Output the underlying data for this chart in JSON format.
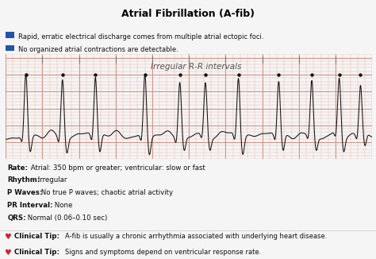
{
  "title": "Atrial Fibrillation (A-fib)",
  "title_bg": "#c8845a",
  "title_color": "black",
  "bullet_color": "#2255aa",
  "bullet1_clean": "Rapid, erratic electrical discharge comes from multiple atrial ectopic foci.",
  "bullet2": "No organized atrial contractions are detectable.",
  "ecg_bg": "#f5c8b8",
  "ecg_grid_minor": "#e8a898",
  "ecg_grid_major": "#cc8878",
  "ecg_label": "Irregular R-R intervals",
  "ecg_label_color": "#555555",
  "dot_color": "#111111",
  "rate_bold": "Rate:",
  "rate_text": " Atrial: 350 bpm or greater; ventricular: slow or fast",
  "rhythm_bold": "Rhythm:",
  "rhythm_text": " Irregular",
  "pwaves_bold": "P Waves:",
  "pwaves_text": " No true P waves; chaotic atrial activity",
  "pr_bold": "PR Interval:",
  "pr_text": " None",
  "qrs_bold": "QRS:",
  "qrs_text": " Normal (0.06–0.10 sec)",
  "tip1_text": " A-fib is usually a chronic arrhythmia associated with underlying heart disease.",
  "tip2_text": " Signs and symptoms depend on ventricular response rate.",
  "heart_color": "#cc2233",
  "text_color": "#111111",
  "bg_color": "#f5f5f5",
  "tips_bg": "#ffffcc",
  "r_peaks": [
    0.055,
    0.155,
    0.245,
    0.38,
    0.475,
    0.545,
    0.635,
    0.745,
    0.835,
    0.91,
    0.968
  ],
  "r_peak_heights": [
    0.9,
    0.85,
    0.88,
    0.92,
    0.8,
    0.75,
    0.88,
    0.82,
    0.78,
    0.8,
    0.72
  ]
}
